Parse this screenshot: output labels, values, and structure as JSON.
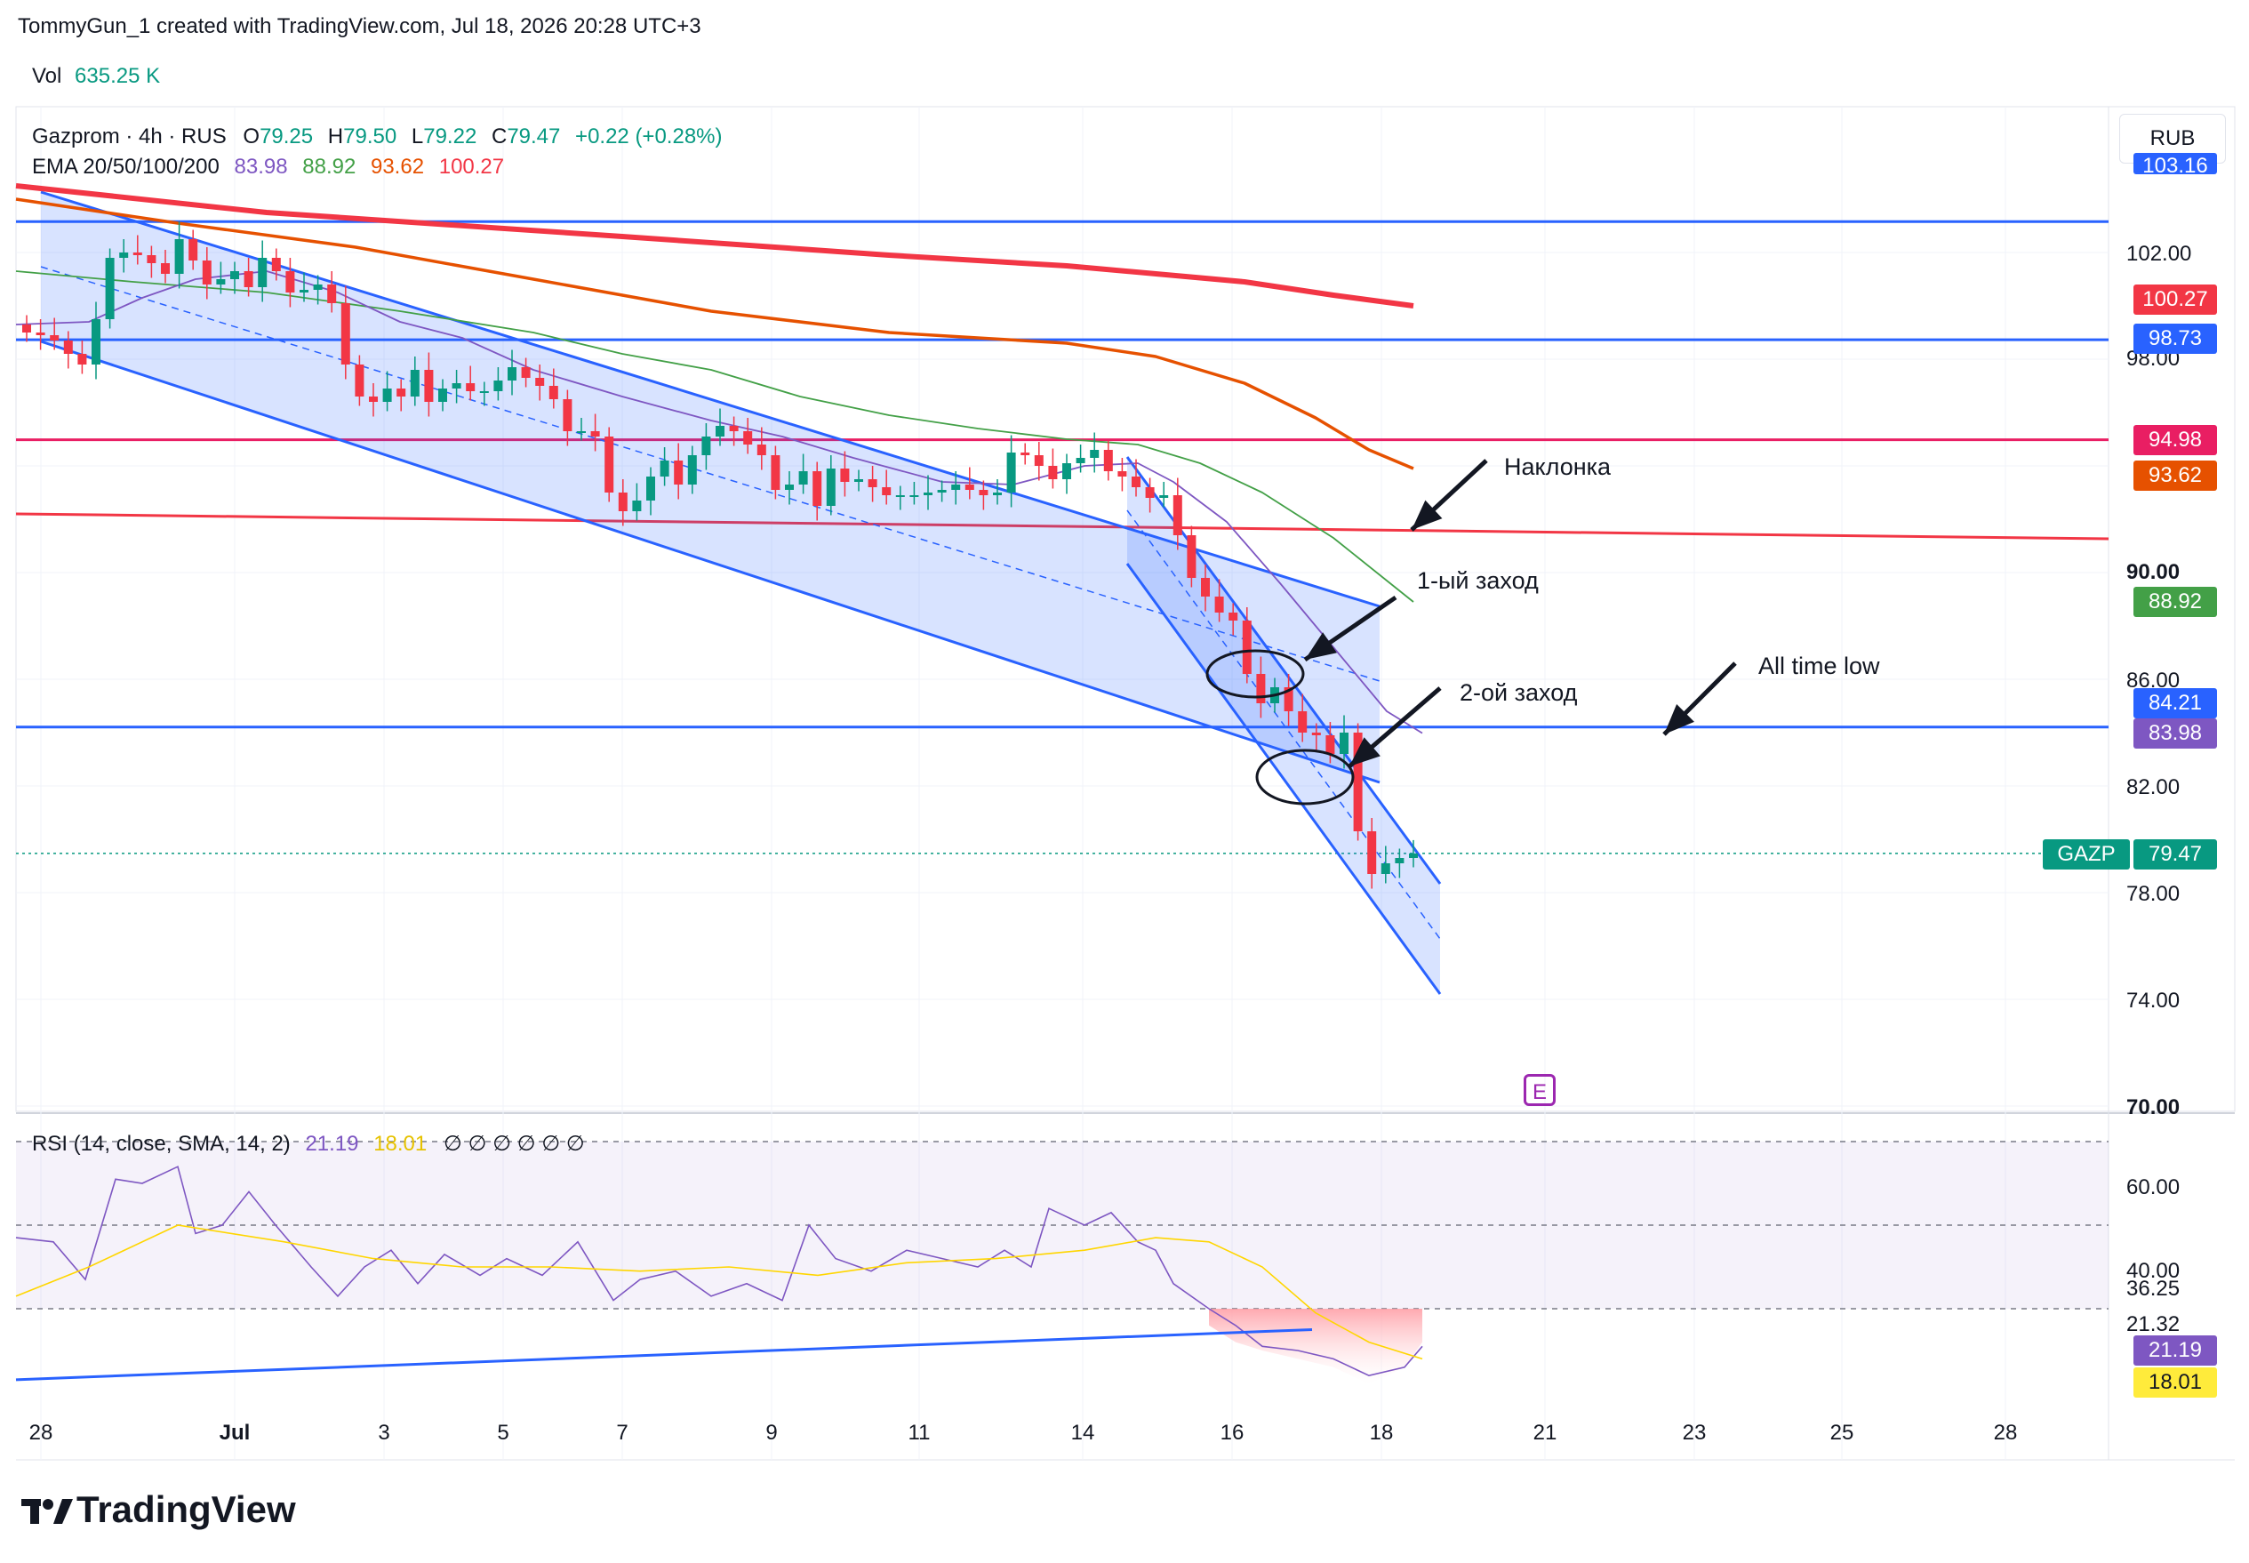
{
  "top_caption": "TommyGun_1 created with TradingView.com, Jul 18, 2026 20:28 UTC+3",
  "vol": {
    "label": "Vol",
    "value": "635.25 K"
  },
  "symbol": {
    "name": "Gazprom · 4h · RUS",
    "o_label": "O",
    "o": "79.25",
    "h_label": "H",
    "h": "79.50",
    "l_label": "L",
    "l": "79.22",
    "c_label": "C",
    "c": "79.47",
    "chg": "+0.22 (+0.28%)"
  },
  "ema": {
    "label": "EMA 20/50/100/200",
    "v20": "83.98",
    "v50": "88.92",
    "v100": "93.62",
    "v200": "100.27"
  },
  "currency": "RUB",
  "rsi_header": {
    "label": "RSI (14, close, SMA, 14, 2)",
    "rsi": "21.19",
    "sma": "18.01",
    "empty": "∅ ∅ ∅ ∅ ∅ ∅"
  },
  "price_ticks": [
    "102.00",
    "98.00",
    "90.00",
    "86.00",
    "82.00",
    "78.00",
    "74.00",
    "70.00"
  ],
  "rsi_ticks": [
    "60.00",
    "40.00",
    "36.25",
    "21.32"
  ],
  "badges": [
    {
      "id": "l105",
      "text": "103.16",
      "color": "#2962ff"
    },
    {
      "id": "ema200",
      "text": "100.27",
      "color": "#f23645"
    },
    {
      "id": "l9873",
      "text": "98.73",
      "color": "#2962ff"
    },
    {
      "id": "l9498",
      "text": "94.98",
      "color": "#e91e63"
    },
    {
      "id": "ema100",
      "text": "93.62",
      "color": "#e65100"
    },
    {
      "id": "ema50",
      "text": "88.92",
      "color": "#43a047"
    },
    {
      "id": "l8421",
      "text": "84.21",
      "color": "#2962ff"
    },
    {
      "id": "ema20",
      "text": "83.98",
      "color": "#7e57c2"
    },
    {
      "id": "rsi",
      "text": "21.19",
      "color": "#7e57c2"
    },
    {
      "id": "rsisma",
      "text": "18.01",
      "color": "#ffeb3b"
    }
  ],
  "last_price": {
    "symbol": "GAZP",
    "value": "79.47",
    "color": "#089981"
  },
  "annotations": {
    "a1": "Наклонка",
    "a2": "1-ый заход",
    "a3": "2-ой заход",
    "a4": "All time low"
  },
  "x_labels": [
    "28",
    "Jul",
    "3",
    "5",
    "7",
    "9",
    "11",
    "14",
    "16",
    "18",
    "21",
    "23",
    "25",
    "28"
  ],
  "brand": "TradingView",
  "chart_data": {
    "type": "candlestick",
    "title": "Gazprom · 4h · RUS",
    "ylim": [
      70,
      105
    ],
    "horizontal_levels": [
      103.16,
      98.73,
      94.98,
      84.21
    ],
    "ema_last": {
      "ema20": 83.98,
      "ema50": 88.92,
      "ema100": 93.62,
      "ema200": 100.27
    },
    "close_series": [
      99.0,
      98.9,
      98.7,
      98.2,
      97.8,
      99.5,
      101.8,
      102.0,
      101.9,
      101.6,
      101.2,
      102.5,
      101.7,
      100.8,
      101.0,
      101.3,
      100.7,
      101.8,
      101.3,
      100.5,
      100.6,
      100.8,
      100.1,
      97.8,
      96.6,
      96.4,
      96.9,
      96.6,
      97.6,
      96.4,
      96.9,
      97.1,
      96.8,
      96.8,
      97.2,
      97.7,
      97.3,
      97.0,
      96.5,
      95.3,
      95.3,
      95.1,
      93.0,
      92.3,
      92.7,
      93.6,
      94.2,
      93.3,
      94.4,
      95.1,
      95.5,
      95.3,
      94.8,
      94.4,
      93.1,
      93.3,
      93.8,
      92.5,
      93.9,
      93.4,
      93.5,
      93.2,
      92.9,
      92.9,
      92.9,
      93.0,
      93.1,
      93.3,
      93.1,
      92.9,
      93.0,
      94.5,
      94.4,
      94.0,
      93.5,
      94.1,
      94.3,
      94.6,
      93.8,
      93.6,
      93.2,
      92.8,
      92.9,
      91.4,
      89.8,
      89.1,
      88.5,
      88.2,
      86.2,
      85.1,
      85.7,
      84.8,
      84.0,
      83.9,
      83.2,
      84.0,
      80.3,
      78.7,
      79.1,
      79.3,
      79.47
    ],
    "rsi": {
      "last": 21.19,
      "sma_last": 18.01,
      "levels": [
        70,
        50,
        30
      ]
    }
  }
}
